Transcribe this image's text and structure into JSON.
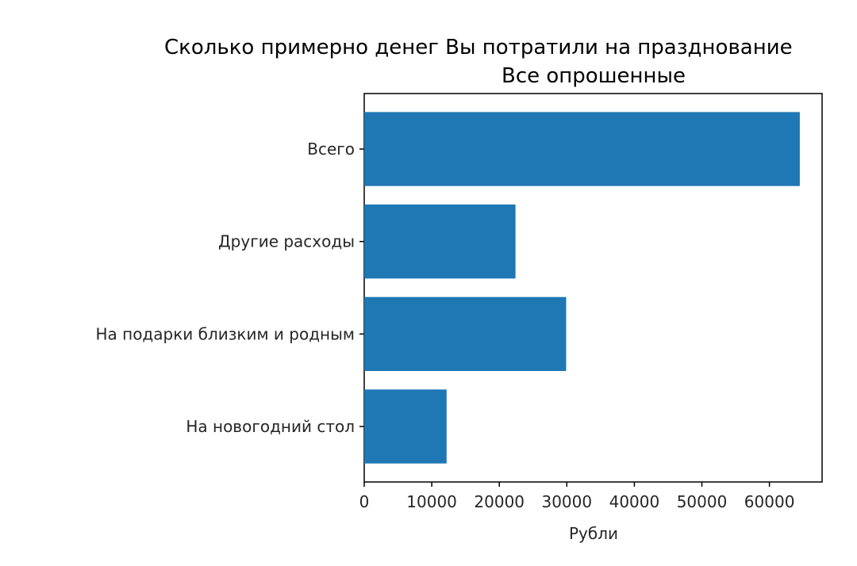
{
  "chart_data": {
    "type": "bar",
    "orientation": "horizontal",
    "title": "Сколько примерно денег Вы потратили на празднование",
    "subtitle": "Все опрошенные",
    "xlabel": "Рубли",
    "ylabel": "",
    "categories": [
      "На новогодний стол",
      "На подарки близким и родным",
      "Другие расходы",
      "Всего"
    ],
    "values": [
      12200,
      29900,
      22400,
      64500
    ],
    "xlim": [
      0,
      67800
    ],
    "xticks": [
      0,
      10000,
      20000,
      30000,
      40000,
      50000,
      60000
    ],
    "bar_color": "#1f77b4",
    "grid": false
  }
}
